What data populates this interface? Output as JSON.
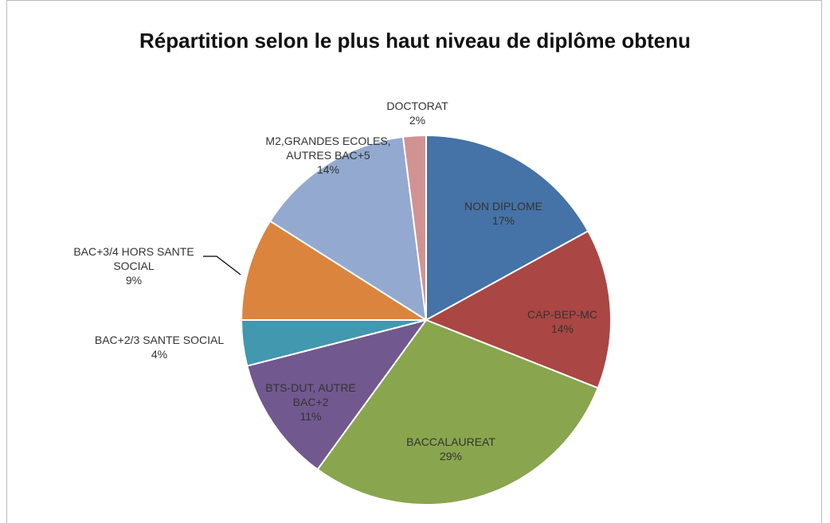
{
  "chart_data": {
    "type": "pie",
    "title": "Répartition selon le plus haut niveau de diplôme obtenu",
    "categories": [
      "NON DIPLOME",
      "CAP-BEP-MC",
      "BACCALAUREAT",
      "BTS-DUT, AUTRE BAC+2",
      "BAC+2/3 SANTE SOCIAL",
      "BAC+3/4 HORS SANTE SOCIAL",
      "M2,GRANDES ECOLES, AUTRES BAC+5",
      "DOCTORAT"
    ],
    "values": [
      17,
      14,
      29,
      11,
      4,
      9,
      14,
      2
    ],
    "value_labels": [
      "17%",
      "14%",
      "29%",
      "11%",
      "4%",
      "9%",
      "14%",
      "2%"
    ],
    "colors": [
      "#4572a7",
      "#aa4643",
      "#89a54e",
      "#71588f",
      "#4198af",
      "#db843d",
      "#93a9cf",
      "#d19392"
    ]
  }
}
